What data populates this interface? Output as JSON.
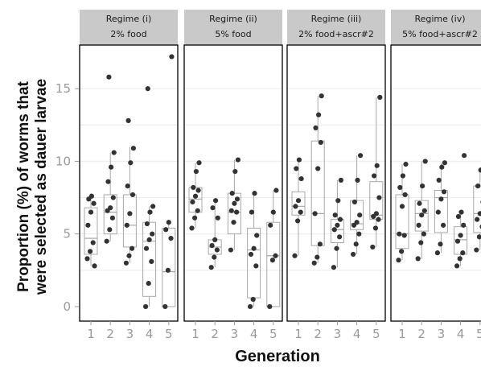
{
  "chart_data": {
    "type": "box",
    "xlabel": "Generation",
    "ylabel_line1": "Proportion (%) of worms that",
    "ylabel_line2": "were selected as dauer larvae",
    "ylim": [
      -1,
      18
    ],
    "yticks": [
      "0",
      "5",
      "10",
      "15"
    ],
    "categories": [
      "1",
      "2",
      "3",
      "4",
      "5"
    ],
    "grid": "light horizontal",
    "colors": {
      "strip_fill": "#c9c9c9",
      "box_stroke": "#a8a8a8",
      "point": "#333333",
      "panel_border": "#000000",
      "grid": "#ececec"
    },
    "panels": [
      {
        "title_line1": "Regime (i)",
        "title_line2": "2% food",
        "boxes": [
          {
            "q1": 3.6,
            "median": 4.7,
            "q3": 6.8,
            "whisker_low": 2.8,
            "whisker_high": 7.8
          },
          {
            "q1": 5.0,
            "median": 6.5,
            "q3": 7.7,
            "whisker_low": 4.5,
            "whisker_high": 10.6
          },
          {
            "q1": 4.1,
            "median": 5.6,
            "q3": 7.7,
            "whisker_low": 3.0,
            "whisker_high": 11.0
          },
          {
            "q1": 0.7,
            "median": 4.5,
            "q3": 5.8,
            "whisker_low": 0.0,
            "whisker_high": 6.9
          },
          {
            "q1": 0.0,
            "median": 2.4,
            "q3": 5.4,
            "whisker_low": 0.0,
            "whisker_high": 5.8
          }
        ],
        "points": [
          [
            3.3,
            3.8,
            4.4,
            5.6,
            6.5,
            7.1,
            7.4,
            7.6,
            2.8
          ],
          [
            4.5,
            5.3,
            6.1,
            6.6,
            6.8,
            7.5,
            8.6,
            9.6,
            10.6,
            15.8
          ],
          [
            3.0,
            3.5,
            4.0,
            5.6,
            6.4,
            7.7,
            8.3,
            9.9,
            10.9,
            12.8
          ],
          [
            0.0,
            1.6,
            3.1,
            4.0,
            4.6,
            5.0,
            5.7,
            6.5,
            6.9,
            15.0
          ],
          [
            0.0,
            2.5,
            4.7,
            5.3,
            5.8,
            17.2
          ]
        ]
      },
      {
        "title_line1": "Regime (ii)",
        "title_line2": "5% food",
        "boxes": [
          {
            "q1": 6.5,
            "median": 7.4,
            "q3": 8.2,
            "whisker_low": 5.4,
            "whisker_high": 9.9
          },
          {
            "q1": 3.6,
            "median": 4.1,
            "q3": 4.6,
            "whisker_low": 2.7,
            "whisker_high": 7.3
          },
          {
            "q1": 5.0,
            "median": 6.5,
            "q3": 7.8,
            "whisker_low": 3.9,
            "whisker_high": 10.1
          },
          {
            "q1": 0.6,
            "median": 3.9,
            "q3": 5.4,
            "whisker_low": 0.0,
            "whisker_high": 7.8
          },
          {
            "q1": 0.0,
            "median": 3.5,
            "q3": 5.8,
            "whisker_low": 0.0,
            "whisker_high": 8.0
          }
        ],
        "points": [
          [
            5.4,
            6.1,
            6.6,
            7.2,
            7.6,
            8.0,
            8.2,
            9.3,
            9.9
          ],
          [
            2.7,
            3.4,
            3.9,
            4.2,
            4.6,
            6.1,
            6.8,
            7.3
          ],
          [
            3.9,
            5.8,
            6.5,
            6.6,
            7.1,
            7.4,
            7.8,
            9.3,
            10.1
          ],
          [
            0.0,
            0.5,
            2.8,
            3.6,
            4.0,
            4.9,
            6.5,
            7.8
          ],
          [
            0.0,
            3.2,
            3.5,
            5.6,
            6.5,
            8.0
          ]
        ]
      },
      {
        "title_line1": "Regime (iii)",
        "title_line2": "2% food+ascr#2",
        "boxes": [
          {
            "q1": 6.3,
            "median": 6.9,
            "q3": 7.9,
            "whisker_low": 3.5,
            "whisker_high": 10.1
          },
          {
            "q1": 4.2,
            "median": 6.4,
            "q3": 11.4,
            "whisker_low": 3.0,
            "whisker_high": 14.5
          },
          {
            "q1": 4.4,
            "median": 5.3,
            "q3": 6.0,
            "whisker_low": 2.7,
            "whisker_high": 8.7
          },
          {
            "q1": 5.3,
            "median": 5.7,
            "q3": 7.3,
            "whisker_low": 3.6,
            "whisker_high": 10.4
          },
          {
            "q1": 6.0,
            "median": 6.3,
            "q3": 8.6,
            "whisker_low": 4.1,
            "whisker_high": 14.4
          }
        ],
        "points": [
          [
            3.5,
            5.9,
            6.5,
            6.9,
            7.3,
            8.8,
            9.5,
            10.1
          ],
          [
            3.0,
            3.4,
            4.3,
            6.4,
            9.5,
            11.3,
            12.3,
            13.2,
            14.5
          ],
          [
            2.7,
            4.0,
            4.8,
            5.3,
            5.6,
            6.0,
            6.3,
            7.3,
            8.7
          ],
          [
            3.6,
            4.3,
            5.0,
            5.6,
            5.8,
            6.3,
            7.2,
            8.7,
            10.4
          ],
          [
            4.1,
            5.4,
            6.0,
            6.2,
            6.4,
            7.5,
            9.0,
            9.7,
            14.4
          ]
        ]
      },
      {
        "title_line1": "Regime (iv)",
        "title_line2": "5% food+ascr#2",
        "boxes": [
          {
            "q1": 4.0,
            "median": 5.0,
            "q3": 7.7,
            "whisker_low": 3.2,
            "whisker_high": 9.8
          },
          {
            "q1": 5.2,
            "median": 6.4,
            "q3": 7.3,
            "whisker_low": 3.3,
            "whisker_high": 10.0
          },
          {
            "q1": 5.1,
            "median": 7.5,
            "q3": 8.0,
            "whisker_low": 3.7,
            "whisker_high": 9.9
          },
          {
            "q1": 3.6,
            "median": 4.6,
            "q3": 5.5,
            "whisker_low": 2.8,
            "whisker_high": 6.5
          },
          {
            "q1": 5.1,
            "median": 6.4,
            "q3": 8.3,
            "whisker_low": 3.9,
            "whisker_high": 9.4
          }
        ],
        "points": [
          [
            3.2,
            3.8,
            4.9,
            5.0,
            6.9,
            7.7,
            8.2,
            9.0,
            9.8
          ],
          [
            3.3,
            4.4,
            5.0,
            5.6,
            6.3,
            6.6,
            7.1,
            8.3,
            10.0
          ],
          [
            3.7,
            4.3,
            5.6,
            6.5,
            7.4,
            7.9,
            8.7,
            9.6,
            9.9
          ],
          [
            2.8,
            3.3,
            3.7,
            4.5,
            4.9,
            5.6,
            6.2,
            6.5,
            10.4
          ],
          [
            3.9,
            4.8,
            5.5,
            6.0,
            6.4,
            7.2,
            8.3,
            9.4
          ]
        ]
      }
    ]
  }
}
